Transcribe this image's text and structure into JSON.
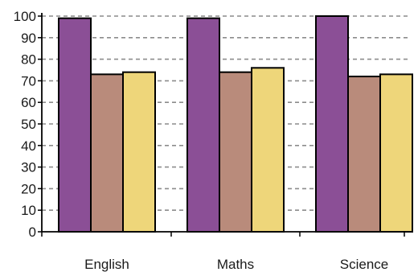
{
  "chart_data": {
    "type": "bar",
    "categories": [
      "English",
      "Maths",
      "Science"
    ],
    "series": [
      {
        "values": [
          99,
          99,
          100
        ],
        "color": "#8b4f96"
      },
      {
        "values": [
          73,
          74,
          72
        ],
        "color": "#b98b7b"
      },
      {
        "values": [
          74,
          76,
          73
        ],
        "color": "#eed67a"
      }
    ],
    "yticks": [
      "0",
      "10",
      "20",
      "30",
      "40",
      "50",
      "60",
      "70",
      "80",
      "90",
      "100"
    ],
    "ylim": [
      0,
      100
    ],
    "grid": true,
    "grid_style": "dashed",
    "title": "",
    "xlabel": "",
    "ylabel": ""
  }
}
